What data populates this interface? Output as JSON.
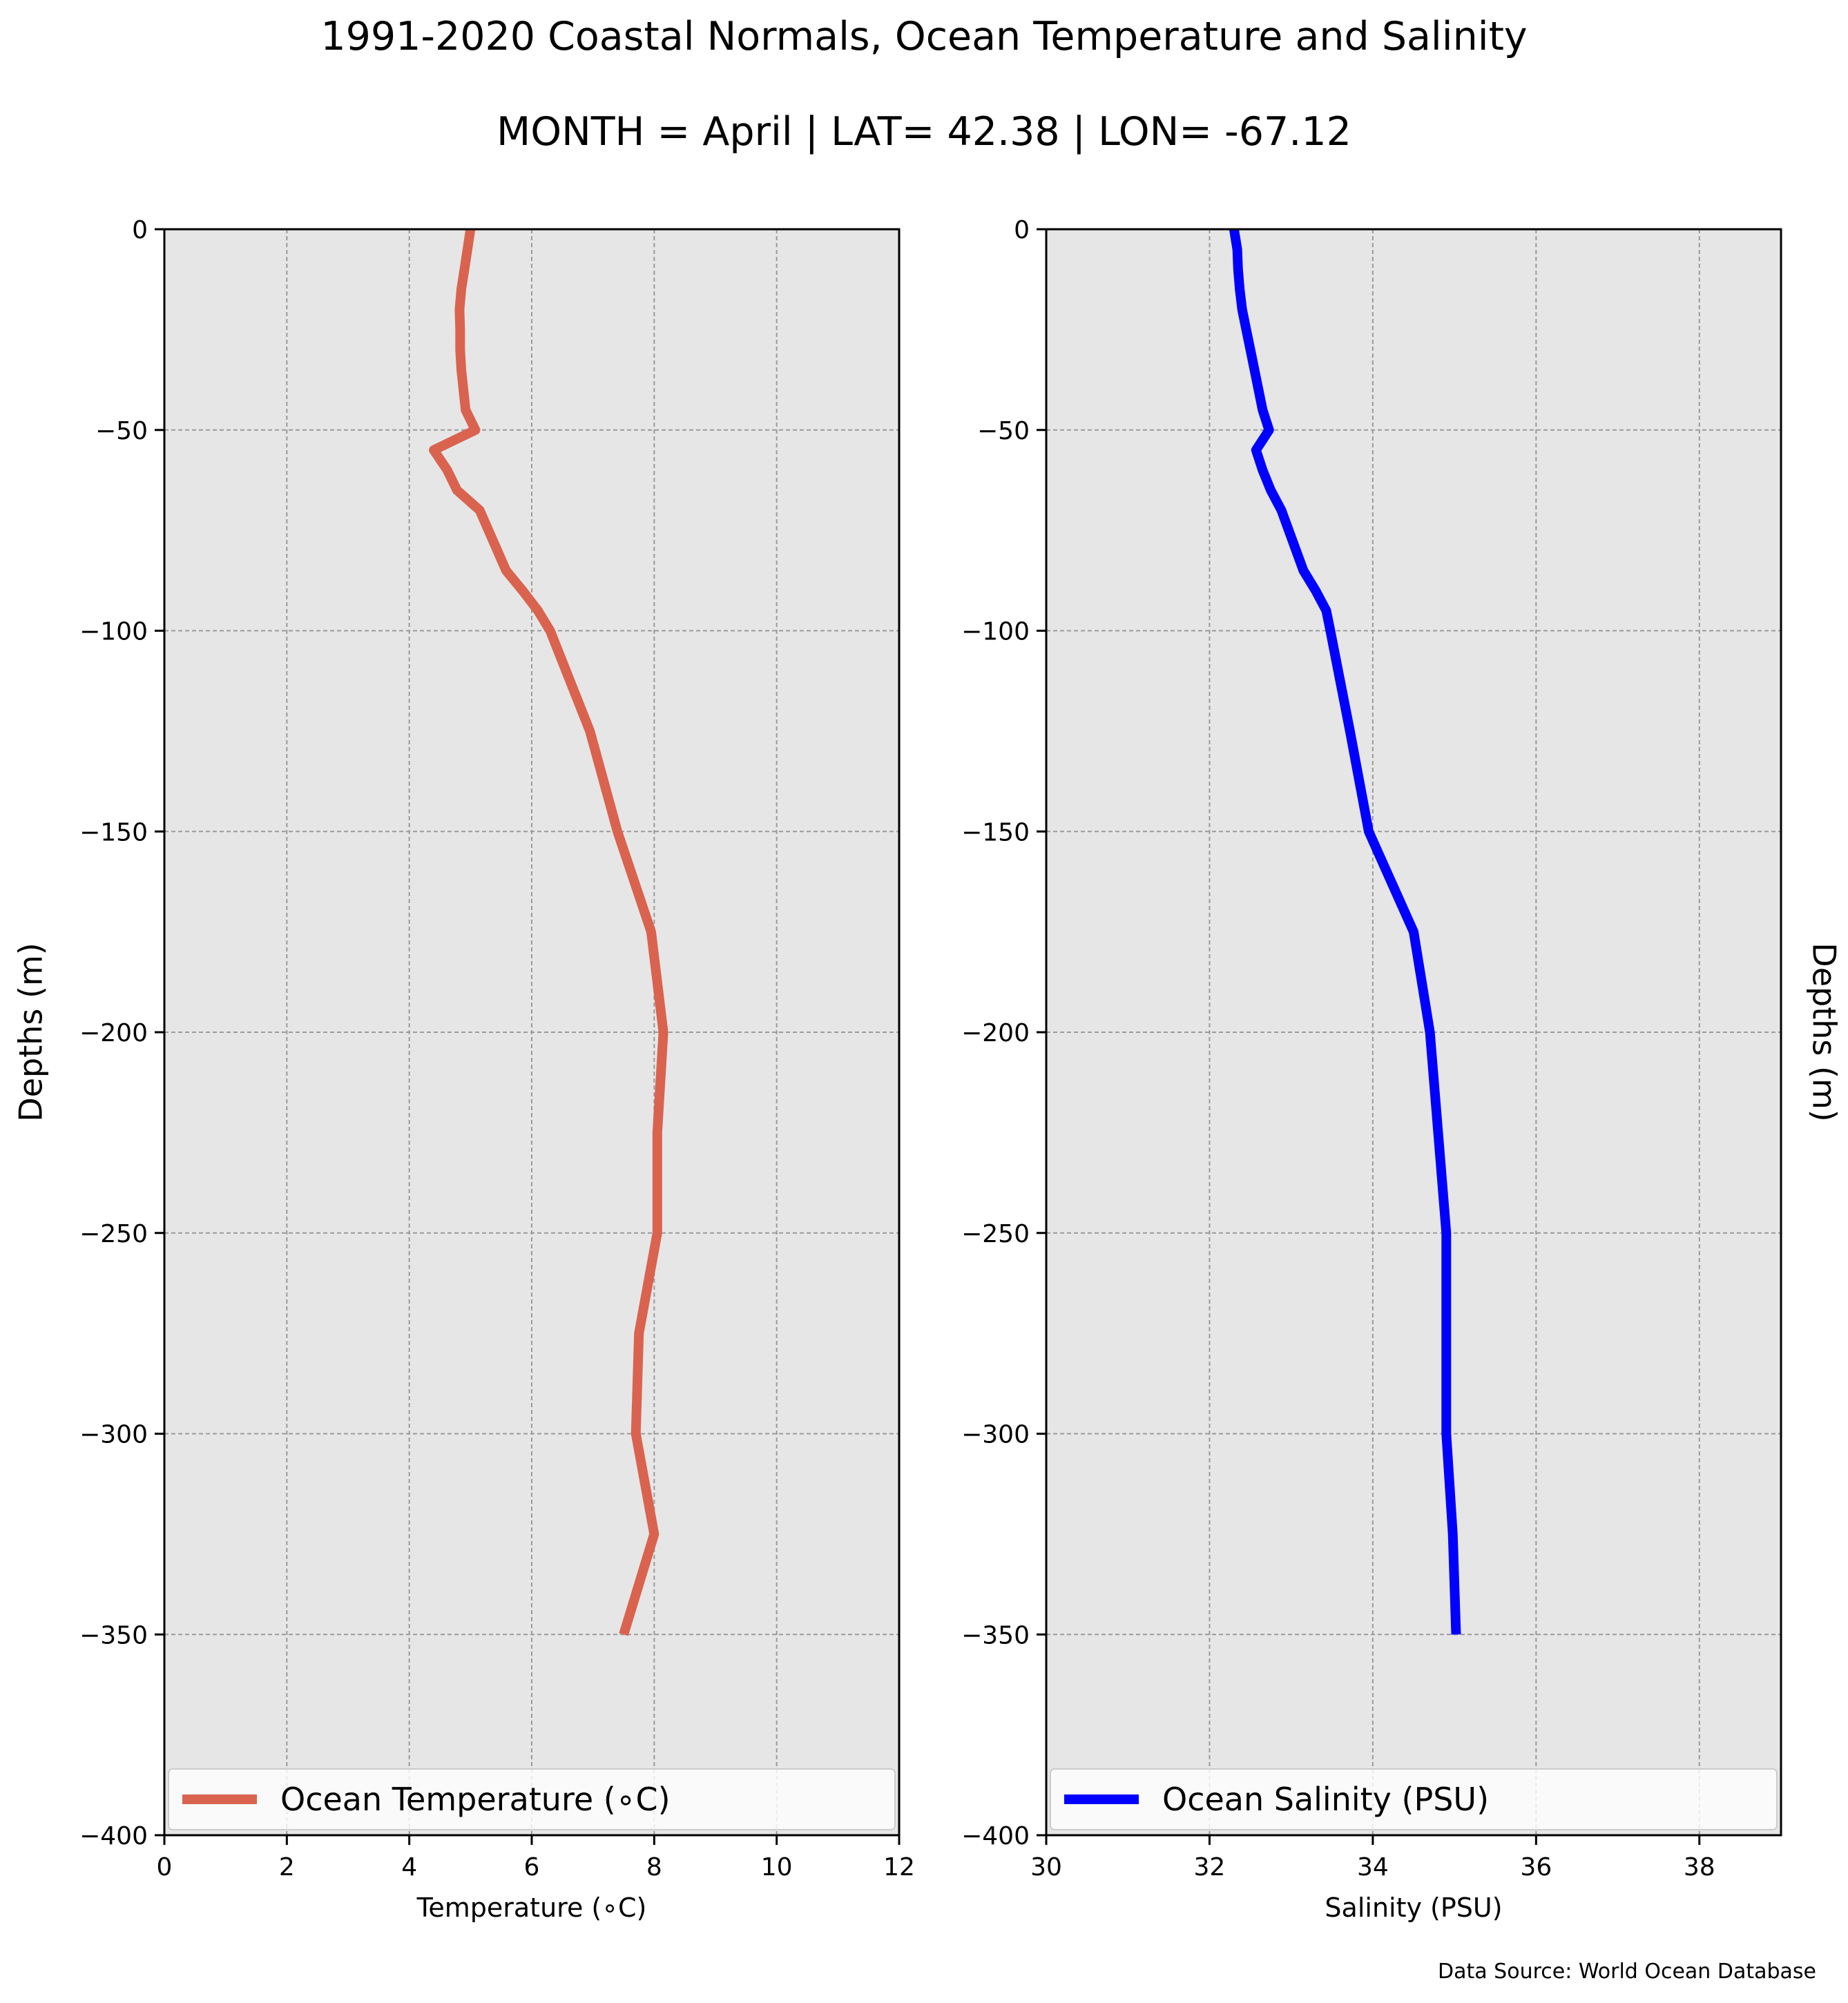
{
  "title": "1991-2020 Coastal Normals, Ocean Temperature and Salinity",
  "subtitle": "MONTH = April | LAT= 42.38 | LON= -67.12",
  "source": "Data Source: World Ocean Database",
  "chart_data": [
    {
      "type": "line",
      "xlabel": "Temperature (∘C)",
      "ylabel": "Depths (m)",
      "xlim": [
        0,
        12
      ],
      "ylim": [
        -400,
        0
      ],
      "xticks": [
        0,
        2,
        4,
        6,
        8,
        10,
        12
      ],
      "yticks": [
        0,
        -50,
        -100,
        -150,
        -200,
        -250,
        -300,
        -350,
        -400
      ],
      "ytick_labels": [
        "0",
        "−50",
        "−100",
        "−150",
        "−200",
        "−250",
        "−300",
        "−350",
        "−400"
      ],
      "grid": true,
      "legend_position": "lower center",
      "color": "#d9634f",
      "series": [
        {
          "name": "Ocean Temperature (∘C)",
          "x": [
            5.0,
            4.95,
            4.9,
            4.85,
            4.82,
            4.83,
            4.83,
            4.85,
            4.92,
            5.08,
            4.4,
            4.62,
            4.78,
            5.15,
            5.58,
            5.85,
            6.1,
            6.3,
            6.95,
            7.4,
            7.95,
            8.15,
            8.05,
            8.05,
            7.75,
            7.7,
            8.0,
            7.5
          ],
          "y": [
            0,
            -5,
            -10,
            -15,
            -20,
            -25,
            -30,
            -35,
            -45,
            -50,
            -55,
            -60,
            -65,
            -70,
            -85,
            -90,
            -95,
            -100,
            -125,
            -150,
            -175,
            -200,
            -225,
            -250,
            -275,
            -300,
            -325,
            -350
          ]
        }
      ]
    },
    {
      "type": "line",
      "xlabel": "Salinity (PSU)",
      "ylabel": "Depths (m)",
      "xlim": [
        30,
        39
      ],
      "ylim": [
        -400,
        0
      ],
      "xticks": [
        30,
        32,
        34,
        36,
        38
      ],
      "yticks": [
        0,
        -50,
        -100,
        -150,
        -200,
        -250,
        -300,
        -350,
        -400
      ],
      "ytick_labels": [
        "0",
        "−50",
        "−100",
        "−150",
        "−200",
        "−250",
        "−300",
        "−350",
        "−400"
      ],
      "grid": true,
      "legend_position": "lower center",
      "color": "#0000ff",
      "series": [
        {
          "name": "Ocean Salinity (PSU)",
          "x": [
            32.3,
            32.34,
            32.35,
            32.37,
            32.4,
            32.45,
            32.5,
            32.55,
            32.65,
            32.73,
            32.57,
            32.65,
            32.75,
            32.88,
            33.15,
            33.3,
            33.43,
            33.48,
            33.72,
            33.95,
            34.5,
            34.7,
            34.8,
            34.9,
            34.9,
            34.9,
            34.98,
            35.02
          ],
          "y": [
            0,
            -5,
            -10,
            -15,
            -20,
            -25,
            -30,
            -35,
            -45,
            -50,
            -55,
            -60,
            -65,
            -70,
            -85,
            -90,
            -95,
            -100,
            -125,
            -150,
            -175,
            -200,
            -225,
            -250,
            -275,
            -300,
            -325,
            -350
          ]
        }
      ]
    }
  ]
}
